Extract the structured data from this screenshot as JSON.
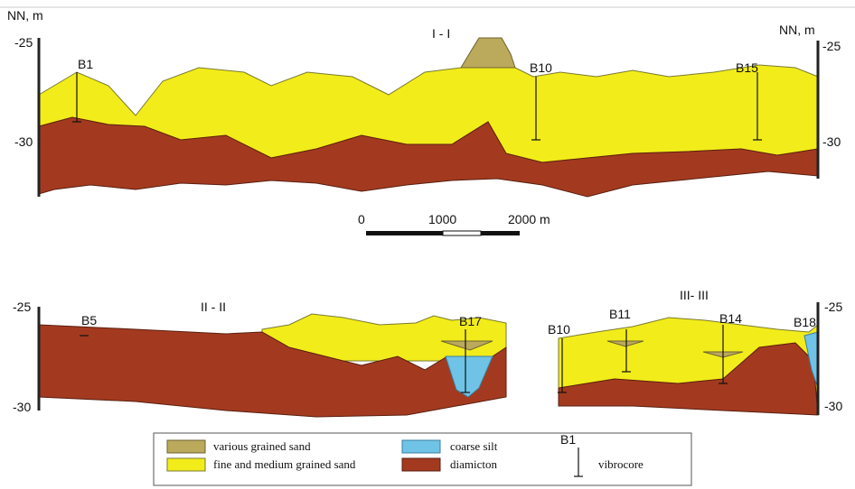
{
  "sections": [
    {
      "title": "I - I",
      "unit_left": "NN, m",
      "unit_right": "NN, m",
      "left_labels": [
        "-25",
        "-30"
      ],
      "right_labels": [
        "-25",
        "-30"
      ],
      "boreholes": [
        "B1",
        "B10",
        "B15"
      ]
    },
    {
      "title": "II - II",
      "left_labels": [
        "-25",
        "-30"
      ],
      "boreholes": [
        "B5",
        "B17"
      ]
    },
    {
      "title": "III- III",
      "right_labels": [
        "-25",
        "-30"
      ],
      "boreholes": [
        "B10",
        "B11",
        "B14",
        "B18"
      ]
    }
  ],
  "scale_bar": {
    "labels": [
      "0",
      "1000",
      "2000 m"
    ]
  },
  "legend": {
    "items": [
      "various grained sand",
      "fine and medium grained sand",
      "coarse silt",
      "diamicton"
    ],
    "vibrocore_example": "B1",
    "vibrocore_label": "vibrocore"
  }
}
